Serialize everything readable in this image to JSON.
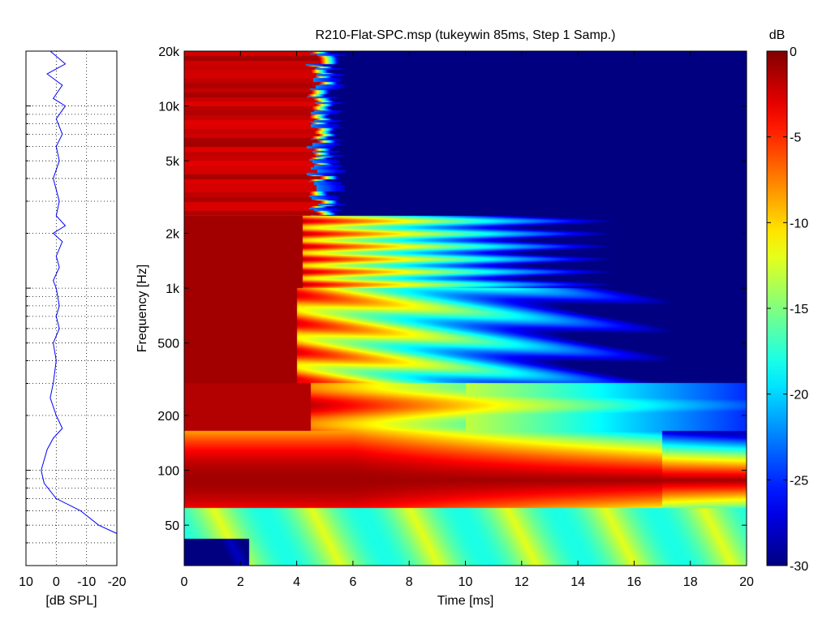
{
  "chart_data": [
    {
      "type": "line",
      "panel": "frequency-response",
      "xlabel": "[dB SPL]",
      "x_reversed": true,
      "xlim": [
        10,
        -20
      ],
      "x_ticks": [
        10,
        0,
        -10,
        -20
      ],
      "x_tick_labels": [
        "10",
        "0",
        "-10",
        "-20"
      ],
      "y_scale": "log",
      "ylim": [
        30,
        20000
      ],
      "grid": true,
      "line_color": "#0000ff",
      "points": [
        {
          "f": 20000,
          "db": 2
        },
        {
          "f": 17000,
          "db": -3
        },
        {
          "f": 15000,
          "db": 3
        },
        {
          "f": 13000,
          "db": -2
        },
        {
          "f": 11000,
          "db": 1
        },
        {
          "f": 10000,
          "db": -3
        },
        {
          "f": 8500,
          "db": 0
        },
        {
          "f": 7000,
          "db": -2
        },
        {
          "f": 6000,
          "db": 0
        },
        {
          "f": 5000,
          "db": -1
        },
        {
          "f": 4000,
          "db": 1
        },
        {
          "f": 3000,
          "db": -1
        },
        {
          "f": 2500,
          "db": 0
        },
        {
          "f": 2200,
          "db": -3
        },
        {
          "f": 2000,
          "db": 1
        },
        {
          "f": 1800,
          "db": -2
        },
        {
          "f": 1500,
          "db": 0
        },
        {
          "f": 1300,
          "db": -1
        },
        {
          "f": 1100,
          "db": 1
        },
        {
          "f": 1000,
          "db": 0
        },
        {
          "f": 800,
          "db": -1
        },
        {
          "f": 700,
          "db": 0
        },
        {
          "f": 600,
          "db": -1
        },
        {
          "f": 500,
          "db": 1
        },
        {
          "f": 400,
          "db": 0
        },
        {
          "f": 300,
          "db": 1
        },
        {
          "f": 250,
          "db": 2
        },
        {
          "f": 200,
          "db": 0
        },
        {
          "f": 170,
          "db": -2
        },
        {
          "f": 150,
          "db": 1
        },
        {
          "f": 130,
          "db": 3
        },
        {
          "f": 100,
          "db": 5
        },
        {
          "f": 85,
          "db": 4
        },
        {
          "f": 70,
          "db": 0
        },
        {
          "f": 60,
          "db": -8
        },
        {
          "f": 50,
          "db": -14
        },
        {
          "f": 45,
          "db": -20
        }
      ]
    },
    {
      "type": "heatmap",
      "panel": "cumulative-spectral-decay",
      "title": "R210-Flat-SPC.msp (tukeywin 85ms, Step 1 Samp.)",
      "xlabel": "Time [ms]",
      "ylabel": "Frequency [Hz]",
      "xlim": [
        0,
        20
      ],
      "x_ticks": [
        0,
        2,
        4,
        6,
        8,
        10,
        12,
        14,
        16,
        18,
        20
      ],
      "x_tick_labels": [
        "0",
        "2",
        "4",
        "6",
        "8",
        "10",
        "12",
        "14",
        "16",
        "18",
        "20"
      ],
      "y_scale": "log",
      "ylim": [
        30,
        20000
      ],
      "y_ticks": [
        50,
        100,
        200,
        500,
        1000,
        2000,
        5000,
        10000,
        20000
      ],
      "y_tick_labels": [
        "50",
        "100",
        "200",
        "500",
        "1k",
        "2k",
        "5k",
        "10k",
        "20k"
      ],
      "colormap": "jet",
      "clim": [
        -30,
        0
      ],
      "colorbar": {
        "label": "dB",
        "ticks": [
          0,
          -5,
          -10,
          -15,
          -20,
          -25,
          -30
        ],
        "tick_labels": [
          "0",
          "-5",
          "-10",
          "-15",
          "-20",
          "-25",
          "-30"
        ]
      },
      "decay_regions": [
        {
          "band_hz": [
            2500,
            20000
          ],
          "decay_to_-30dB_ms": 5
        },
        {
          "band_hz": [
            1000,
            2500
          ],
          "decay_to_-30dB_ms": 14
        },
        {
          "band_hz": [
            300,
            1000
          ],
          "decay_to_-30dB_ms": 15
        },
        {
          "band_hz": [
            170,
            300
          ],
          "decay_to_-30dB_ms": 20
        },
        {
          "band_hz": [
            60,
            150
          ],
          "decay_to_-30dB_ms": 20
        },
        {
          "band_hz": [
            30,
            60
          ],
          "level_db_range": [
            -25,
            -8
          ]
        }
      ]
    }
  ]
}
